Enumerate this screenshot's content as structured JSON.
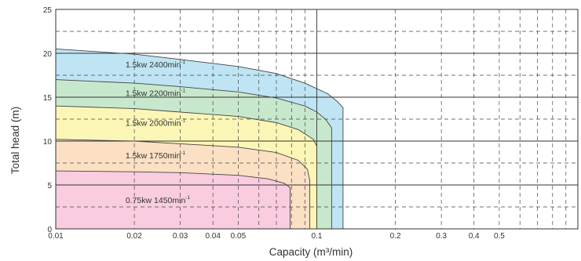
{
  "chart_data": {
    "type": "area",
    "title": "",
    "xlabel": "Capacity (m³/min)",
    "ylabel": "Total head (m)",
    "xscale": "log",
    "xlim": [
      0.01,
      1.0
    ],
    "ylim": [
      0,
      25
    ],
    "grid": true,
    "legend": "none",
    "x_ticks": [
      {
        "value": 0.01,
        "label": "0.01"
      },
      {
        "value": 0.02,
        "label": "0.02"
      },
      {
        "value": 0.03,
        "label": "0.03"
      },
      {
        "value": 0.04,
        "label": "0.04"
      },
      {
        "value": 0.05,
        "label": "0.05"
      },
      {
        "value": 0.1,
        "label": "0.1"
      },
      {
        "value": 0.2,
        "label": "0.2"
      },
      {
        "value": 0.3,
        "label": "0.3"
      },
      {
        "value": 0.4,
        "label": "0.4"
      },
      {
        "value": 0.5,
        "label": "0.5"
      }
    ],
    "y_ticks": [
      {
        "value": 0,
        "label": "0"
      },
      {
        "value": 5,
        "label": "5"
      },
      {
        "value": 10,
        "label": "10"
      },
      {
        "value": 15,
        "label": "15"
      },
      {
        "value": 20,
        "label": "20"
      },
      {
        "value": 25,
        "label": "25"
      }
    ],
    "series": [
      {
        "name": "1.5kw 2400min⁻¹",
        "label_main": "1.5kw 2400min",
        "label_sup": "-1",
        "color": "#bfe4f4",
        "curve": [
          [
            0.01,
            20.5
          ],
          [
            0.02,
            19.9
          ],
          [
            0.03,
            19.3
          ],
          [
            0.05,
            18.5
          ],
          [
            0.07,
            17.7
          ],
          [
            0.09,
            16.6
          ],
          [
            0.11,
            15.4
          ],
          [
            0.12,
            14.5
          ],
          [
            0.126,
            13.8
          ],
          [
            0.126,
            0
          ]
        ]
      },
      {
        "name": "1.5kw 2200min⁻¹",
        "label_main": "1.5kw 2200min",
        "label_sup": "-1",
        "color": "#c8e8cd",
        "curve": [
          [
            0.01,
            17.0
          ],
          [
            0.02,
            16.6
          ],
          [
            0.03,
            16.2
          ],
          [
            0.05,
            15.6
          ],
          [
            0.07,
            14.9
          ],
          [
            0.09,
            14.0
          ],
          [
            0.1,
            13.3
          ],
          [
            0.108,
            12.5
          ],
          [
            0.114,
            11.5
          ],
          [
            0.114,
            0
          ]
        ]
      },
      {
        "name": "1.5kw 2000min⁻¹",
        "label_main": "1.5kw 2000min",
        "label_sup": "-1",
        "color": "#fbf6b6",
        "curve": [
          [
            0.01,
            14.0
          ],
          [
            0.02,
            13.7
          ],
          [
            0.03,
            13.3
          ],
          [
            0.05,
            12.8
          ],
          [
            0.07,
            12.1
          ],
          [
            0.085,
            11.3
          ],
          [
            0.097,
            10.2
          ],
          [
            0.1,
            9.4
          ],
          [
            0.1,
            0
          ]
        ]
      },
      {
        "name": "1.5kw 1750min⁻¹",
        "label_main": "1.5kw 1750min",
        "label_sup": "-1",
        "color": "#fbe0c3",
        "curve": [
          [
            0.01,
            10.2
          ],
          [
            0.02,
            10.0
          ],
          [
            0.03,
            9.7
          ],
          [
            0.05,
            9.3
          ],
          [
            0.07,
            8.7
          ],
          [
            0.085,
            7.8
          ],
          [
            0.092,
            6.8
          ],
          [
            0.094,
            5.5
          ],
          [
            0.094,
            0
          ]
        ]
      },
      {
        "name": "0.75kw 1450min⁻¹",
        "label_main": "0.75kw 1450min",
        "label_sup": "-1",
        "color": "#f9cce0",
        "curve": [
          [
            0.01,
            6.6
          ],
          [
            0.02,
            6.5
          ],
          [
            0.03,
            6.4
          ],
          [
            0.05,
            6.1
          ],
          [
            0.065,
            5.7
          ],
          [
            0.075,
            5.2
          ],
          [
            0.079,
            4.7
          ],
          [
            0.079,
            0
          ]
        ]
      }
    ]
  }
}
